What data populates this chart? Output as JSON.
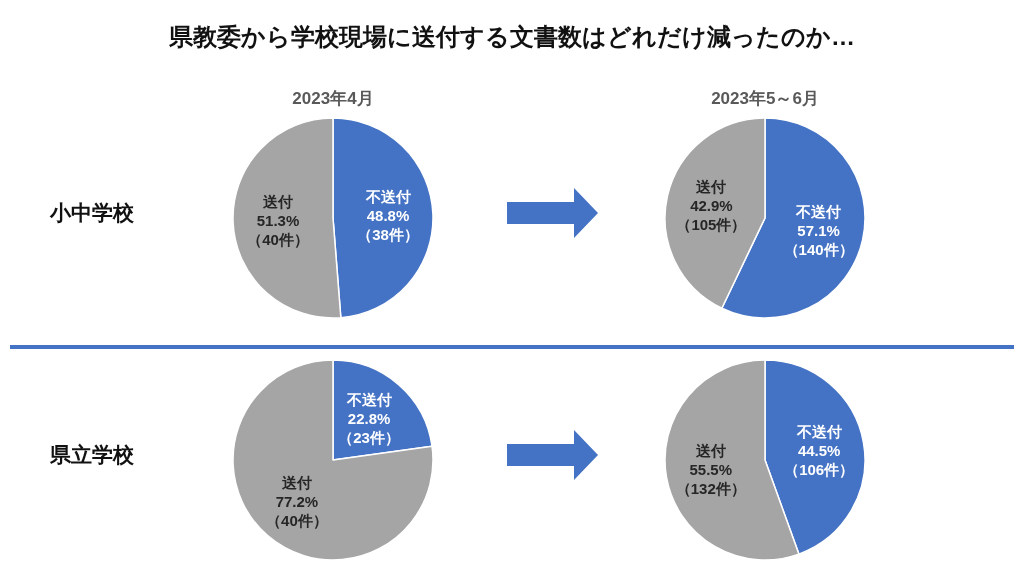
{
  "chart_data": [
    {
      "type": "pie",
      "title": "県教委から学校現場に送付する文書数はどれだけ減ったのか…",
      "subtitle": "2023年4月",
      "ylabel": "小中学校",
      "categories": [
        "不送付",
        "送付"
      ],
      "values": [
        48.8,
        51.3
      ],
      "colors": [
        "#4472c4",
        "#a5a5a5"
      ],
      "value_labels": [
        "48.8%\n（38件）",
        "51.3%\n（40件）"
      ]
    },
    {
      "type": "pie",
      "subtitle": "2023年5～6月",
      "categories": [
        "不送付",
        "送付"
      ],
      "values": [
        57.1,
        42.9
      ],
      "colors": [
        "#4472c4",
        "#a5a5a5"
      ],
      "value_labels": [
        "57.1%\n（140件）",
        "42.9%\n（105件）"
      ]
    },
    {
      "type": "pie",
      "ylabel": "県立学校",
      "categories": [
        "不送付",
        "送付"
      ],
      "values": [
        22.8,
        77.2
      ],
      "colors": [
        "#4472c4",
        "#a5a5a5"
      ],
      "value_labels": [
        "22.8%\n（23件）",
        "77.2%\n（40件）"
      ]
    },
    {
      "type": "pie",
      "categories": [
        "不送付",
        "送付"
      ],
      "values": [
        44.5,
        55.5
      ],
      "colors": [
        "#4472c4",
        "#a5a5a5"
      ],
      "value_labels": [
        "44.5%\n（106件）",
        "55.5%\n（132件）"
      ]
    }
  ]
}
